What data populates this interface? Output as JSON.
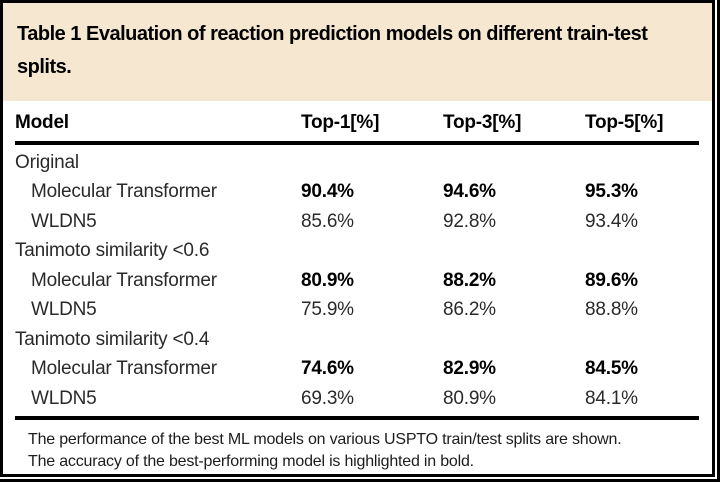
{
  "title": "Table 1 Evaluation of reaction prediction models on different train-test splits.",
  "colors": {
    "title_band_background": "#f6e8d0",
    "frame_border": "#000000",
    "body_text": "#2a2a2a",
    "bold_text": "#000000"
  },
  "table": {
    "columns": [
      "Model",
      "Top-1[%]",
      "Top-3[%]",
      "Top-5[%]"
    ],
    "groups": [
      {
        "label": "Original",
        "rows": [
          {
            "model": "Molecular Transformer",
            "bold": true,
            "values": [
              "90.4%",
              "94.6%",
              "95.3%"
            ]
          },
          {
            "model": "WLDN5",
            "bold": false,
            "values": [
              "85.6%",
              "92.8%",
              "93.4%"
            ]
          }
        ]
      },
      {
        "label": "Tanimoto similarity <0.6",
        "rows": [
          {
            "model": "Molecular Transformer",
            "bold": true,
            "values": [
              "80.9%",
              "88.2%",
              "89.6%"
            ]
          },
          {
            "model": "WLDN5",
            "bold": false,
            "values": [
              "75.9%",
              "86.2%",
              "88.8%"
            ]
          }
        ]
      },
      {
        "label": "Tanimoto similarity <0.4",
        "rows": [
          {
            "model": "Molecular Transformer",
            "bold": true,
            "values": [
              "74.6%",
              "82.9%",
              "84.5%"
            ]
          },
          {
            "model": "WLDN5",
            "bold": false,
            "values": [
              "69.3%",
              "80.9%",
              "84.1%"
            ]
          }
        ]
      }
    ]
  },
  "footnote": {
    "line1": "The performance of the best ML models on various USPTO train/test splits are shown.",
    "line2": "The accuracy of the best-performing model is highlighted in bold."
  }
}
